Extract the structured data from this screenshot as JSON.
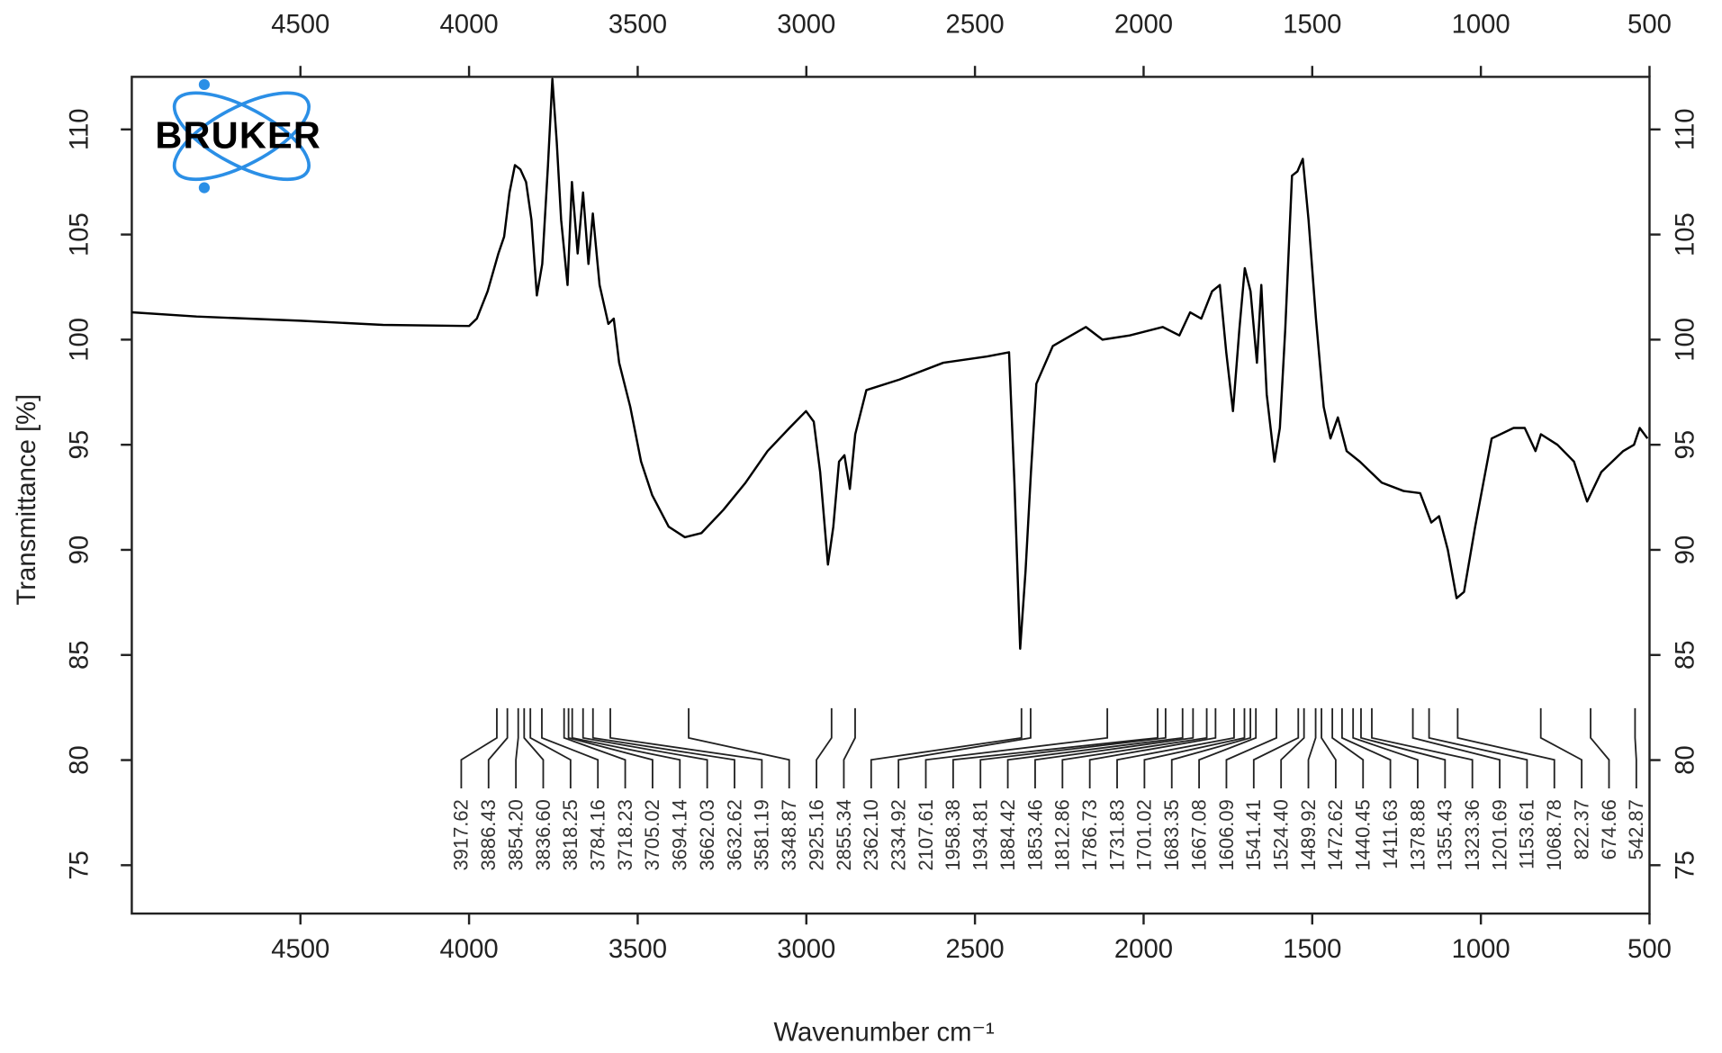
{
  "chart_data": {
    "type": "line",
    "logo": "BRUKER",
    "xlabel": "Wavenumber cm⁻¹",
    "ylabel": "Transmittance [%]",
    "xlim": [
      5000,
      500
    ],
    "xticks": [
      4500,
      4000,
      3500,
      3000,
      2500,
      2000,
      1500,
      1000,
      500
    ],
    "ylim": [
      72.7,
      112.5
    ],
    "yticks": [
      75,
      80,
      85,
      90,
      95,
      100,
      105,
      110
    ],
    "color": "#000000",
    "x": [
      5000,
      4808,
      4500,
      4255,
      4000,
      3977,
      3945,
      3913,
      3896,
      3880,
      3864,
      3848,
      3831,
      3815,
      3799,
      3783,
      3766,
      3753,
      3740,
      3727,
      3708,
      3695,
      3678,
      3662,
      3646,
      3633,
      3613,
      3587,
      3571,
      3555,
      3522,
      3490,
      3457,
      3408,
      3360,
      3311,
      3246,
      3180,
      3115,
      3050,
      3001,
      2978,
      2959,
      2936,
      2920,
      2903,
      2887,
      2871,
      2855,
      2822,
      2724,
      2594,
      2464,
      2399,
      2383,
      2366,
      2350,
      2334,
      2318,
      2269,
      2171,
      2122,
      2041,
      1943,
      1894,
      1862,
      1829,
      1797,
      1774,
      1755,
      1735,
      1716,
      1700,
      1683,
      1664,
      1651,
      1635,
      1612,
      1596,
      1580,
      1560,
      1544,
      1528,
      1511,
      1489,
      1466,
      1446,
      1424,
      1398,
      1359,
      1294,
      1229,
      1180,
      1147,
      1124,
      1098,
      1072,
      1050,
      1017,
      968,
      903,
      870,
      838,
      822,
      773,
      724,
      685,
      643,
      578,
      546,
      529,
      506
    ],
    "values": [
      101.3,
      101.1,
      100.9,
      100.7,
      100.65,
      101.0,
      102.3,
      104.1,
      104.9,
      107.0,
      108.3,
      108.1,
      107.5,
      105.7,
      102.1,
      103.6,
      108.3,
      112.4,
      109.4,
      105.7,
      102.6,
      107.5,
      104.1,
      107.0,
      103.6,
      106.0,
      102.6,
      100.75,
      101.0,
      98.9,
      96.8,
      94.2,
      92.6,
      91.1,
      90.6,
      90.8,
      91.9,
      93.2,
      94.7,
      95.8,
      96.6,
      96.1,
      93.7,
      89.3,
      91.1,
      94.2,
      94.5,
      92.9,
      95.5,
      97.6,
      98.1,
      98.9,
      99.2,
      99.4,
      93.2,
      85.3,
      89.0,
      93.7,
      97.9,
      99.7,
      100.6,
      100.0,
      100.2,
      100.6,
      100.2,
      101.3,
      101.0,
      102.3,
      102.6,
      99.4,
      96.6,
      100.5,
      103.4,
      102.3,
      98.9,
      102.6,
      97.4,
      94.2,
      95.8,
      100.5,
      107.8,
      108.0,
      108.6,
      105.7,
      101.0,
      96.8,
      95.3,
      96.3,
      94.7,
      94.2,
      93.2,
      92.8,
      92.7,
      91.3,
      91.6,
      90.0,
      87.7,
      88.0,
      91.1,
      95.3,
      95.8,
      95.8,
      94.7,
      95.5,
      95.0,
      94.2,
      92.3,
      93.7,
      94.7,
      95.0,
      95.8,
      95.3
    ],
    "peaks": [
      3917.62,
      3886.43,
      {
        "value": 3854.2,
        "label": "3854.20"
      },
      {
        "value": 3836.6,
        "label": "3836.60"
      },
      3818.25,
      3784.16,
      3718.23,
      3705.02,
      3694.14,
      3662.03,
      3632.62,
      3581.19,
      3348.87,
      2925.16,
      2855.34,
      {
        "value": 2362.1,
        "label": "2362.10"
      },
      2334.92,
      2107.61,
      1958.38,
      1934.81,
      1884.42,
      1853.46,
      1812.86,
      1786.73,
      1731.83,
      1701.02,
      1683.35,
      1667.08,
      1606.09,
      1541.41,
      {
        "value": 1524.4,
        "label": "1524.40"
      },
      1489.92,
      1472.62,
      1440.45,
      1411.63,
      1378.88,
      1355.43,
      1323.36,
      1201.69,
      1153.61,
      1068.78,
      822.37,
      674.66,
      542.87
    ]
  }
}
